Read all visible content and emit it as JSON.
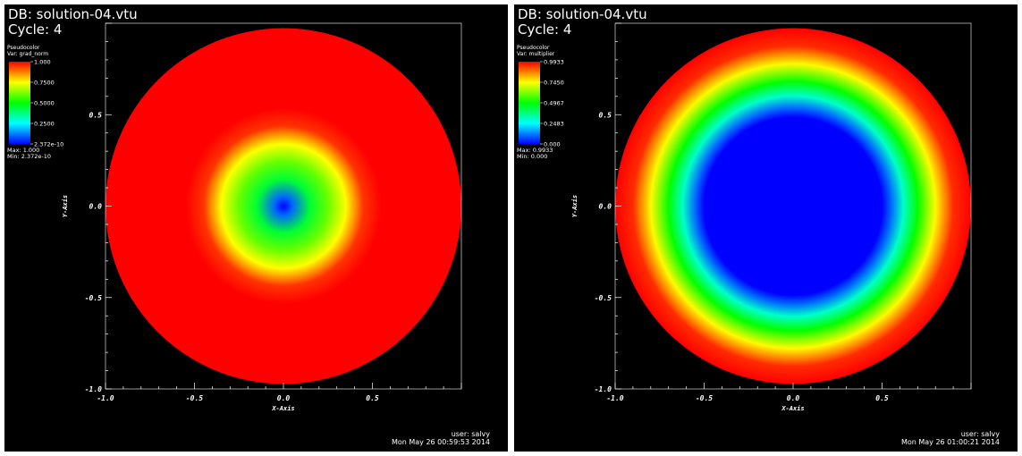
{
  "colors": {
    "background": "#000000",
    "foreground": "#ffffff",
    "colormap_hot_to_cold": [
      "#ff0000",
      "#ffff00",
      "#00ff00",
      "#00ffff",
      "#0000ff"
    ]
  },
  "chart_data": [
    {
      "type": "heatmap",
      "database": "DB: solution-04.vtu",
      "cycle": "Cycle: 4",
      "legend": {
        "title": "Pseudocolor",
        "variable": "Var: grad_norm",
        "tick_labels": [
          "1.000",
          "0.7500",
          "0.5000",
          "0.2500",
          "2.372e-10"
        ],
        "max_label": "Max:  1.000",
        "min_label": "Min:  2.372e-10",
        "range": [
          2.372e-10,
          1.0
        ],
        "placement": "top-left"
      },
      "xlabel": "X-Axis",
      "ylabel": "Y-Axis",
      "xlim": [
        -1.0,
        1.0
      ],
      "ylim": [
        -1.0,
        1.0
      ],
      "x_tick_labels": [
        "-1.0",
        "-0.5",
        "0.0",
        "0.5"
      ],
      "y_tick_labels": [
        "-1.0",
        "-0.5",
        "0.0",
        "0.5"
      ],
      "domain": "disk of radius 1 centered at (0, 0)",
      "radial_profile": {
        "r": [
          0.0,
          0.05,
          0.15,
          0.25,
          0.35,
          0.45,
          0.55,
          1.0
        ],
        "value": [
          0.0,
          0.1,
          0.45,
          0.6,
          0.75,
          0.95,
          1.0,
          1.0
        ]
      },
      "footer_user": "user: salvy",
      "footer_date": "Mon May 26 00:59:53 2014"
    },
    {
      "type": "heatmap",
      "database": "DB: solution-04.vtu",
      "cycle": "Cycle: 4",
      "legend": {
        "title": "Pseudocolor",
        "variable": "Var: multiplier",
        "tick_labels": [
          "0.9933",
          "0.7450",
          "0.4967",
          "0.2483",
          "0.000"
        ],
        "max_label": "Max:  0.9933",
        "min_label": "Min:  0.000",
        "range": [
          0.0,
          0.9933
        ],
        "placement": "top-left"
      },
      "xlabel": "X-Axis",
      "ylabel": "Y-Axis",
      "xlim": [
        -1.0,
        1.0
      ],
      "ylim": [
        -1.0,
        1.0
      ],
      "x_tick_labels": [
        "-1.0",
        "-0.5",
        "0.0",
        "0.5"
      ],
      "y_tick_labels": [
        "-1.0",
        "-0.5",
        "0.0",
        "0.5"
      ],
      "domain": "disk of radius 1 centered at (0, 0)",
      "radial_profile": {
        "r": [
          0.0,
          0.5,
          0.55,
          0.62,
          0.7,
          0.8,
          0.9,
          1.0
        ],
        "value": [
          0.0,
          0.0,
          0.1,
          0.3,
          0.5,
          0.75,
          0.95,
          0.9933
        ]
      },
      "footer_user": "user: salvy",
      "footer_date": "Mon May 26 01:00:21 2014"
    }
  ]
}
